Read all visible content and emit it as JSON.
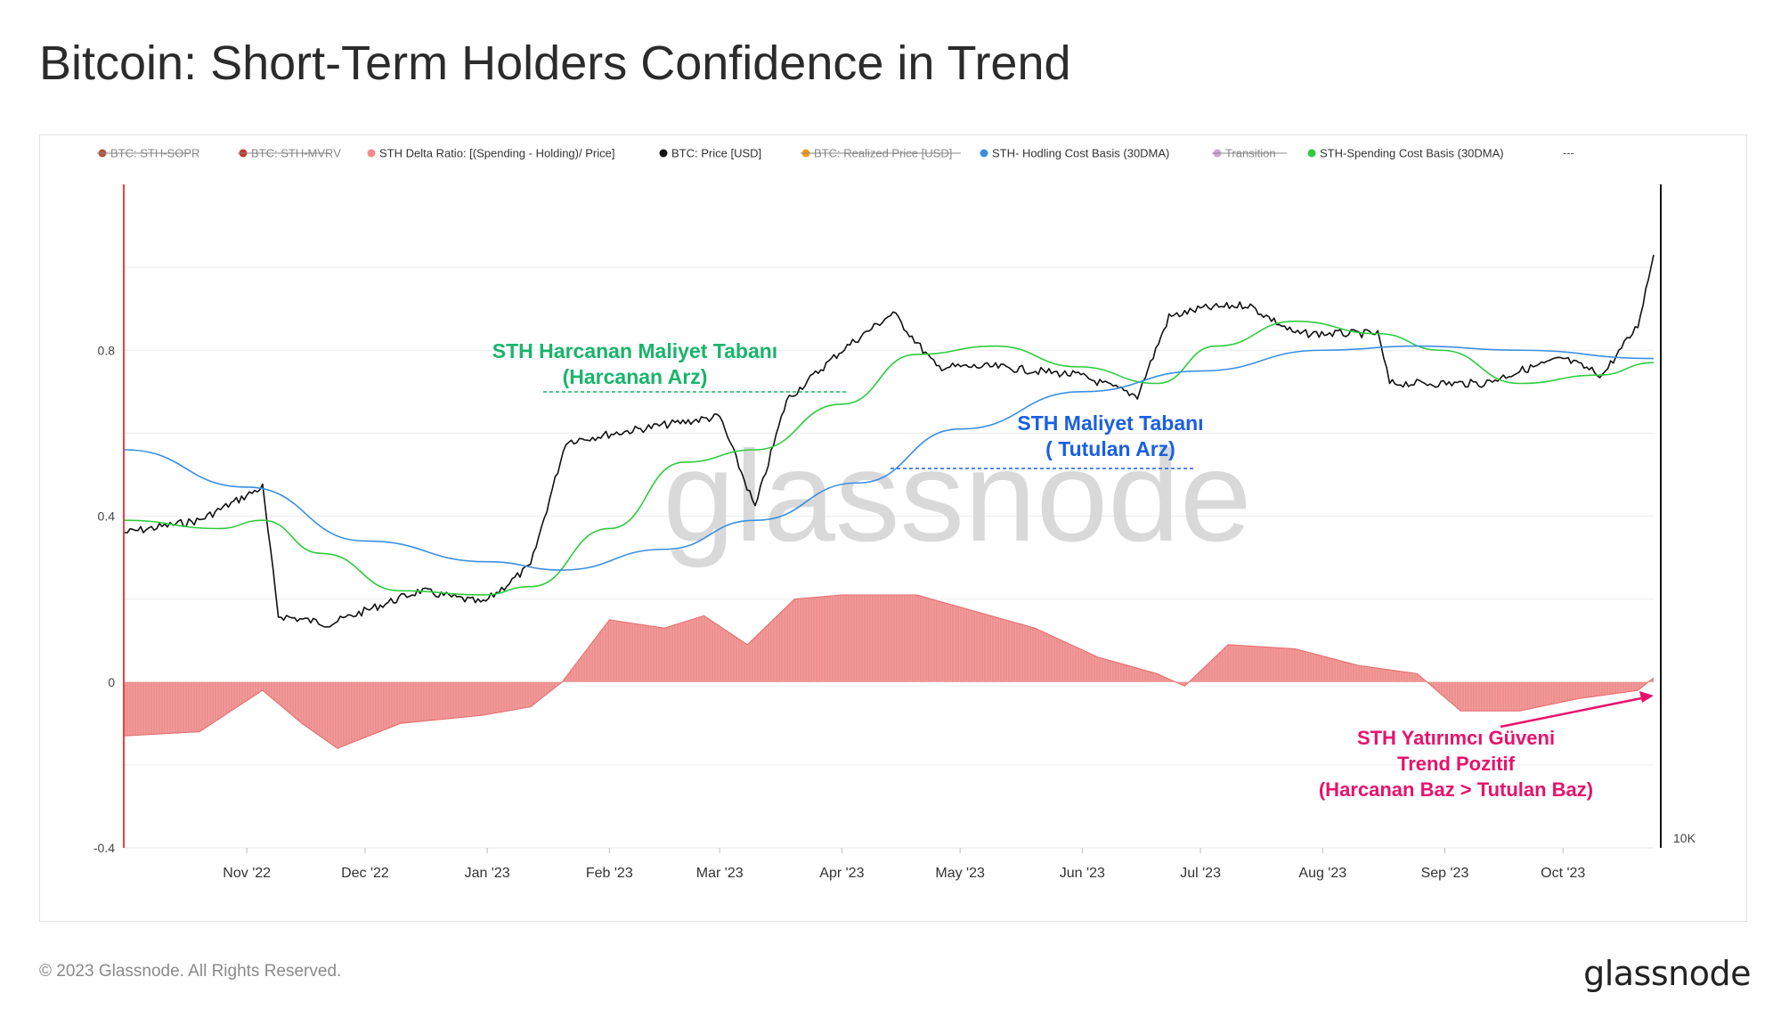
{
  "page": {
    "title": "Bitcoin: Short-Term Holders Confidence in Trend",
    "footer": "© 2023 Glassnode. All Rights Reserved.",
    "brand": "glassnode",
    "watermark": "glassnode"
  },
  "colors": {
    "price": "#111111",
    "spending_basis": "#2ecc40",
    "holding_basis": "#3b8fe0",
    "delta": "#f08a8a",
    "delta_line": "#e36b6b",
    "annotation_green": "#19b46b",
    "annotation_blue": "#1a5fe0",
    "annotation_pink": "#e8126b",
    "left_axis_line": "#e9433f"
  },
  "chart_data": {
    "type": "line",
    "legend_position": "top",
    "legend": [
      {
        "label": "BTC: STH-SOPR",
        "color": "#b5523a",
        "hidden": true
      },
      {
        "label": "BTC: STH-MVRV",
        "color": "#c0392b",
        "hidden": true
      },
      {
        "label": "STH Delta Ratio: [(Spending - Holding)/ Price]",
        "color": "#f08a8a",
        "hidden": false
      },
      {
        "label": "BTC: Price [USD]",
        "color": "#111111",
        "hidden": false
      },
      {
        "label": "BTC: Realized Price [USD]",
        "color": "#f39c12",
        "hidden": true
      },
      {
        "label": "STH- Hodling Cost Basis (30DMA)",
        "color": "#3b8fe0",
        "hidden": false
      },
      {
        "label": "Transition",
        "color": "#c9a6d8",
        "hidden": true
      },
      {
        "label": "STH-Spending Cost Basis (30DMA)",
        "color": "#2ecc40",
        "hidden": false
      },
      {
        "label": "---",
        "color": "#666666",
        "hidden": false
      }
    ],
    "x_ticks": [
      "Nov '22",
      "Dec '22",
      "Jan '23",
      "Feb '23",
      "Mar '23",
      "Apr '23",
      "May '23",
      "Jun '23",
      "Jul '23",
      "Aug '23",
      "Sep '23",
      "Oct '23"
    ],
    "y_left_ticks": [
      "0.8",
      "0.4",
      "0",
      "-0.4"
    ],
    "y_left_lim": [
      -0.4,
      1.2
    ],
    "y_right_ticks": [
      "10K"
    ],
    "grid": true,
    "series": [
      {
        "name": "BTC: Price [USD]",
        "x": [
          "2022-10-01",
          "2022-10-20",
          "2022-11-05",
          "2022-11-09",
          "2022-11-22",
          "2022-12-15",
          "2022-12-31",
          "2023-01-12",
          "2023-01-21",
          "2023-02-15",
          "2023-03-01",
          "2023-03-10",
          "2023-03-18",
          "2023-04-01",
          "2023-04-14",
          "2023-04-25",
          "2023-05-10",
          "2023-05-31",
          "2023-06-15",
          "2023-06-23",
          "2023-07-01",
          "2023-07-13",
          "2023-07-25",
          "2023-08-15",
          "2023-08-18",
          "2023-09-11",
          "2023-09-20",
          "2023-10-01",
          "2023-10-11",
          "2023-10-20",
          "2023-10-24"
        ],
        "values": [
          0.36,
          0.39,
          0.47,
          0.16,
          0.14,
          0.22,
          0.19,
          0.28,
          0.58,
          0.62,
          0.64,
          0.42,
          0.68,
          0.8,
          0.89,
          0.76,
          0.76,
          0.74,
          0.69,
          0.88,
          0.9,
          0.91,
          0.84,
          0.84,
          0.72,
          0.72,
          0.75,
          0.78,
          0.74,
          0.86,
          1.03
        ]
      },
      {
        "name": "STH-Spending Cost Basis (30DMA)",
        "x": [
          "2022-10-01",
          "2022-10-25",
          "2022-11-05",
          "2022-11-20",
          "2022-12-10",
          "2022-12-31",
          "2023-01-12",
          "2023-02-01",
          "2023-02-20",
          "2023-03-10",
          "2023-04-01",
          "2023-04-20",
          "2023-05-10",
          "2023-05-31",
          "2023-06-20",
          "2023-07-05",
          "2023-07-25",
          "2023-08-15",
          "2023-08-31",
          "2023-09-20",
          "2023-10-10",
          "2023-10-24"
        ],
        "values": [
          0.39,
          0.37,
          0.39,
          0.31,
          0.22,
          0.21,
          0.23,
          0.37,
          0.53,
          0.56,
          0.67,
          0.79,
          0.81,
          0.76,
          0.72,
          0.81,
          0.87,
          0.84,
          0.8,
          0.72,
          0.74,
          0.77
        ]
      },
      {
        "name": "STH- Hodling Cost Basis (30DMA)",
        "x": [
          "2022-10-01",
          "2022-11-01",
          "2022-12-01",
          "2023-01-01",
          "2023-01-20",
          "2023-02-15",
          "2023-03-10",
          "2023-04-05",
          "2023-05-01",
          "2023-06-01",
          "2023-07-01",
          "2023-08-01",
          "2023-08-25",
          "2023-09-20",
          "2023-10-24"
        ],
        "values": [
          0.56,
          0.47,
          0.34,
          0.29,
          0.27,
          0.32,
          0.39,
          0.48,
          0.61,
          0.7,
          0.75,
          0.8,
          0.81,
          0.8,
          0.78
        ]
      },
      {
        "name": "STH Delta Ratio: [(Spending - Holding)/ Price]",
        "x": [
          "2022-10-01",
          "2022-10-20",
          "2022-11-05",
          "2022-11-15",
          "2022-11-24",
          "2022-12-10",
          "2022-12-31",
          "2023-01-12",
          "2023-01-20",
          "2023-02-01",
          "2023-02-15",
          "2023-02-25",
          "2023-03-08",
          "2023-03-20",
          "2023-04-01",
          "2023-04-20",
          "2023-05-05",
          "2023-05-20",
          "2023-06-05",
          "2023-06-20",
          "2023-06-27",
          "2023-07-08",
          "2023-07-25",
          "2023-08-10",
          "2023-08-25",
          "2023-09-05",
          "2023-09-20",
          "2023-10-05",
          "2023-10-20",
          "2023-10-24"
        ],
        "values": [
          -0.13,
          -0.12,
          -0.02,
          -0.1,
          -0.16,
          -0.1,
          -0.08,
          -0.06,
          0.0,
          0.15,
          0.13,
          0.16,
          0.09,
          0.2,
          0.21,
          0.21,
          0.17,
          0.13,
          0.06,
          0.02,
          -0.01,
          0.09,
          0.08,
          0.04,
          0.02,
          -0.07,
          -0.07,
          -0.04,
          -0.02,
          0.01
        ]
      }
    ],
    "annotations": [
      {
        "id": "spending",
        "lines": [
          "STH Harcanan Maliyet Tabanı",
          "(Harcanan Arz)"
        ]
      },
      {
        "id": "holding",
        "lines": [
          "STH Maliyet Tabanı",
          "( Tutulan Arz)"
        ]
      },
      {
        "id": "confidence",
        "lines": [
          "STH Yatırımcı Güveni",
          "Trend Pozitif",
          "(Harcanan Baz > Tutulan Baz)"
        ]
      }
    ]
  }
}
